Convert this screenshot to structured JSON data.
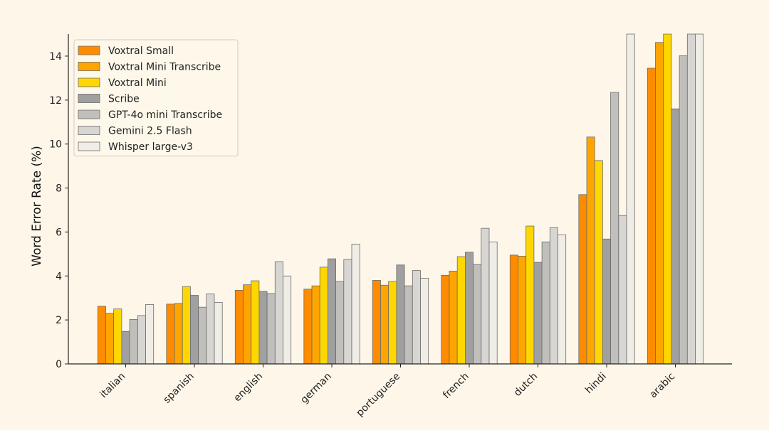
{
  "chart_data": {
    "type": "bar",
    "ylabel": "Word Error Rate (%)",
    "xlabel": "",
    "ylim": [
      0,
      15
    ],
    "yticks": [
      0,
      2,
      4,
      6,
      8,
      10,
      12,
      14
    ],
    "legend_position": "top-left",
    "grid": false,
    "categories": [
      "italian",
      "spanish",
      "english",
      "german",
      "portuguese",
      "french",
      "dutch",
      "hindi",
      "arabic"
    ],
    "series": [
      {
        "name": "Voxtral Small",
        "color": "#ff8c00",
        "values": [
          2.62,
          2.72,
          3.35,
          3.4,
          3.8,
          4.03,
          4.95,
          7.7,
          13.45
        ]
      },
      {
        "name": "Voxtral Mini Transcribe",
        "color": "#ffa500",
        "values": [
          2.3,
          2.75,
          3.6,
          3.55,
          3.58,
          4.22,
          4.9,
          10.32,
          14.62
        ]
      },
      {
        "name": "Voxtral Mini",
        "color": "#ffd700",
        "values": [
          2.5,
          3.52,
          3.78,
          4.4,
          3.75,
          4.88,
          6.27,
          9.25,
          15.0
        ]
      },
      {
        "name": "Scribe",
        "color": "#a0a0a0",
        "values": [
          1.48,
          3.12,
          3.3,
          4.78,
          4.5,
          5.08,
          4.62,
          5.68,
          11.6
        ]
      },
      {
        "name": "GPT-4o mini Transcribe",
        "color": "#c0bfbc",
        "values": [
          2.02,
          2.58,
          3.2,
          3.75,
          3.55,
          4.52,
          5.55,
          12.35,
          14.02
        ]
      },
      {
        "name": "Gemini 2.5 Flash",
        "color": "#d8d6d2",
        "values": [
          2.2,
          3.18,
          4.65,
          4.75,
          4.25,
          6.17,
          6.2,
          6.75,
          15.0
        ]
      },
      {
        "name": "Whisper large-v3",
        "color": "#f0ede6",
        "values": [
          2.7,
          2.8,
          4.0,
          5.45,
          3.9,
          5.55,
          5.87,
          15.0,
          15.0
        ]
      }
    ]
  }
}
